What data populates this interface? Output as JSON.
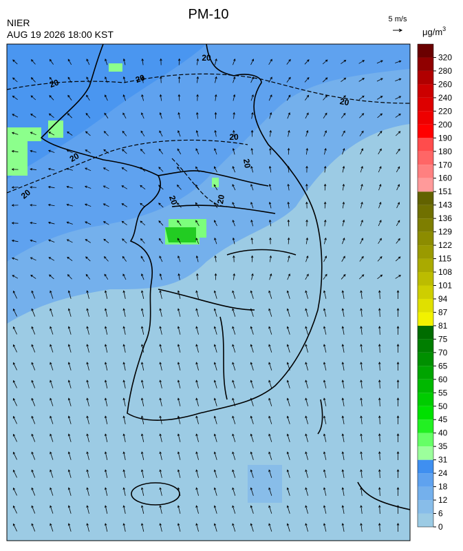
{
  "header": {
    "title": "PM-10",
    "agency": "NIER",
    "datetime": "AUG 19 2026 18:00 KST"
  },
  "wind_legend": {
    "label": "5 m/s"
  },
  "colorbar": {
    "unit": {
      "base": "μg/m",
      "exponent": "3"
    },
    "levels": [
      0,
      6,
      12,
      18,
      24,
      31,
      35,
      40,
      45,
      50,
      55,
      60,
      65,
      70,
      75,
      81,
      87,
      94,
      101,
      108,
      115,
      122,
      129,
      136,
      143,
      151,
      160,
      170,
      180,
      190,
      200,
      220,
      240,
      260,
      280,
      320
    ],
    "colors": [
      "#9ccbe4",
      "#88bde9",
      "#74b0ec",
      "#5fa2ef",
      "#3f8ff0",
      "#9cff9c",
      "#66ff66",
      "#22f022",
      "#00e000",
      "#00cc00",
      "#00b800",
      "#00a400",
      "#009000",
      "#007e00",
      "#006c00",
      "#f2f200",
      "#e0e000",
      "#cece00",
      "#bcbc00",
      "#aaaa00",
      "#9a9a00",
      "#8c8c00",
      "#7e7e00",
      "#707000",
      "#626200",
      "#ff9a9a",
      "#ff8080",
      "#ff6666",
      "#ff4c4c",
      "#ff0000",
      "#ee0000",
      "#dd0000",
      "#cc0000",
      "#b00000",
      "#900000",
      "#6a0000"
    ]
  },
  "contour_labels": [
    "20",
    "20",
    "20",
    "20",
    "20",
    "20",
    "20",
    "20",
    "20",
    "20"
  ]
}
